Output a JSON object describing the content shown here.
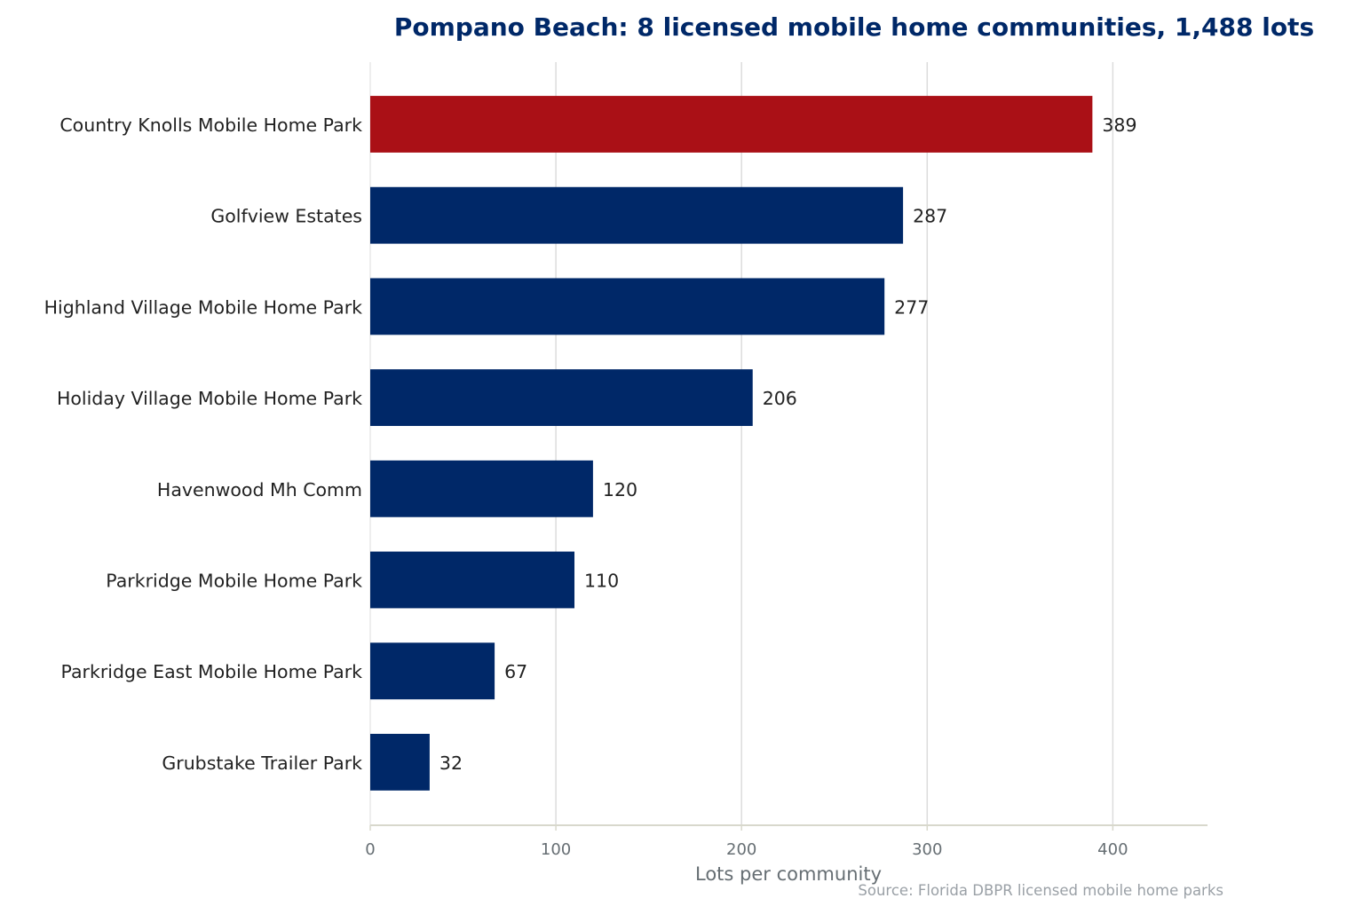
{
  "chart_data": {
    "type": "bar",
    "orientation": "horizontal",
    "title": "Pompano Beach: 8 licensed mobile home communities, 1,488 lots",
    "xlabel": "Lots per community",
    "ylabel": "",
    "source": "Source: Florida DBPR licensed mobile home parks",
    "categories": [
      "Country Knolls Mobile Home Park",
      "Golfview Estates",
      "Highland Village Mobile Home Park",
      "Holiday Village Mobile Home Park",
      "Havenwood Mh Comm",
      "Parkridge Mobile Home Park",
      "Parkridge East Mobile Home Park",
      "Grubstake Trailer Park"
    ],
    "values": [
      389,
      287,
      277,
      206,
      120,
      110,
      67,
      32
    ],
    "highlight_index": 0,
    "xlim": [
      0,
      451
    ],
    "xticks": [
      0,
      100,
      200,
      300,
      400
    ],
    "grid": "vertical",
    "colors": {
      "bar": "#002868",
      "highlight": "#aa1016",
      "title": "#002868",
      "label": "#222222",
      "tick": "#666e73",
      "grid": "#dcdcdc",
      "axis": "#d8d8cc",
      "source": "#9aa0a6"
    }
  }
}
